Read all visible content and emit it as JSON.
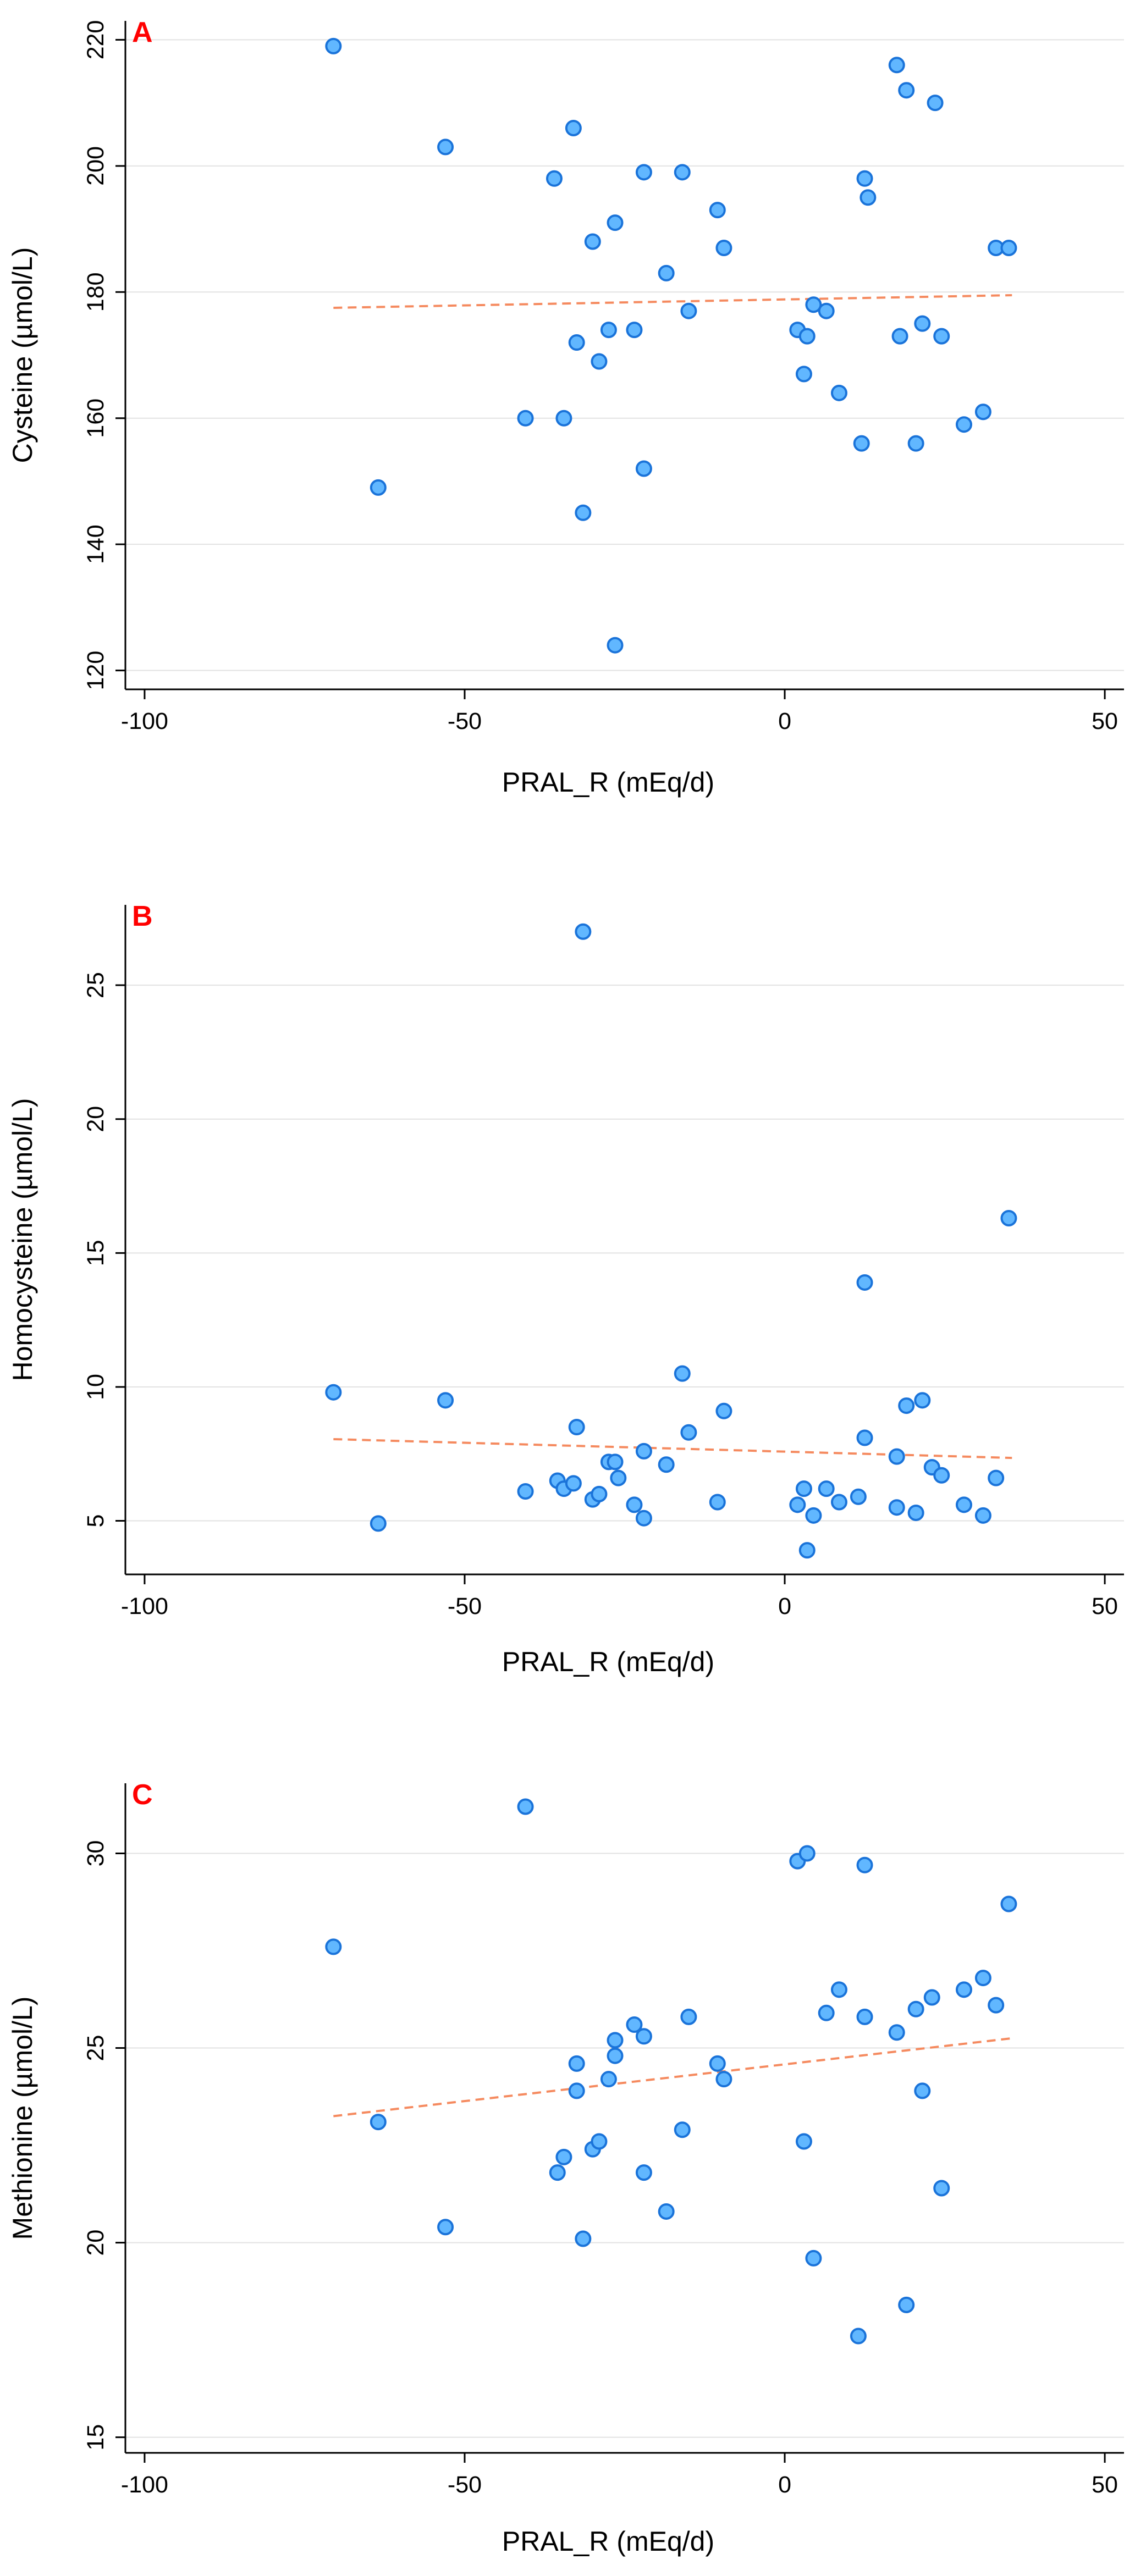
{
  "colors": {
    "point_fill": "#61b7ff",
    "point_stroke": "#1a73d9",
    "fit_line": "#f58a5f",
    "grid": "#e2e2e2",
    "panel_tag": "#ff0000"
  },
  "chart_data": [
    {
      "type": "scatter",
      "panel_label": "A",
      "xlabel": "PRAL_R (mEq/d)",
      "ylabel": "Cysteine (µmol/L)",
      "xlim": [
        -103,
        53
      ],
      "ylim": [
        117,
        223
      ],
      "xticks": [
        -100,
        -50,
        0,
        50
      ],
      "yticks": [
        120,
        140,
        160,
        180,
        200,
        220
      ],
      "fit": {
        "x": [
          -70.5,
          35.5
        ],
        "y": [
          177.5,
          179.5
        ]
      },
      "points": [
        {
          "x": -70.5,
          "y": 219
        },
        {
          "x": -63.5,
          "y": 149
        },
        {
          "x": -53,
          "y": 203
        },
        {
          "x": -40.5,
          "y": 160
        },
        {
          "x": -36,
          "y": 198
        },
        {
          "x": -34.5,
          "y": 160
        },
        {
          "x": -33,
          "y": 206
        },
        {
          "x": -32.5,
          "y": 172
        },
        {
          "x": -31.5,
          "y": 145
        },
        {
          "x": -30,
          "y": 188
        },
        {
          "x": -29,
          "y": 169
        },
        {
          "x": -27.5,
          "y": 174
        },
        {
          "x": -26.5,
          "y": 191
        },
        {
          "x": -26.5,
          "y": 124
        },
        {
          "x": -23.5,
          "y": 174
        },
        {
          "x": -22,
          "y": 199
        },
        {
          "x": -22,
          "y": 152
        },
        {
          "x": -18.5,
          "y": 183
        },
        {
          "x": -16,
          "y": 199
        },
        {
          "x": -15,
          "y": 177
        },
        {
          "x": -10.5,
          "y": 193
        },
        {
          "x": -9.5,
          "y": 187
        },
        {
          "x": 2,
          "y": 174
        },
        {
          "x": 3,
          "y": 167
        },
        {
          "x": 3.5,
          "y": 173
        },
        {
          "x": 4.5,
          "y": 178
        },
        {
          "x": 6.5,
          "y": 177
        },
        {
          "x": 8.5,
          "y": 164
        },
        {
          "x": 12,
          "y": 156
        },
        {
          "x": 12.5,
          "y": 198
        },
        {
          "x": 13,
          "y": 195
        },
        {
          "x": 17.5,
          "y": 216
        },
        {
          "x": 18,
          "y": 173
        },
        {
          "x": 19,
          "y": 212
        },
        {
          "x": 20.5,
          "y": 156
        },
        {
          "x": 21.5,
          "y": 175
        },
        {
          "x": 23.5,
          "y": 210
        },
        {
          "x": 24.5,
          "y": 173
        },
        {
          "x": 28,
          "y": 159
        },
        {
          "x": 31,
          "y": 161
        },
        {
          "x": 33,
          "y": 187
        },
        {
          "x": 35,
          "y": 187
        }
      ]
    },
    {
      "type": "scatter",
      "panel_label": "B",
      "xlabel": "PRAL_R (mEq/d)",
      "ylabel": "Homocysteine (µmol/L)",
      "xlim": [
        -103,
        53
      ],
      "ylim": [
        3,
        28
      ],
      "xticks": [
        -100,
        -50,
        0,
        50
      ],
      "yticks": [
        5,
        10,
        15,
        20,
        25
      ],
      "fit": {
        "x": [
          -70.5,
          35.5
        ],
        "y": [
          8.05,
          7.35
        ]
      },
      "points": [
        {
          "x": -70.5,
          "y": 9.8
        },
        {
          "x": -63.5,
          "y": 4.9
        },
        {
          "x": -53,
          "y": 9.5
        },
        {
          "x": -40.5,
          "y": 6.1
        },
        {
          "x": -35.5,
          "y": 6.5
        },
        {
          "x": -34.5,
          "y": 6.2
        },
        {
          "x": -33,
          "y": 6.4
        },
        {
          "x": -32.5,
          "y": 8.5
        },
        {
          "x": -31.5,
          "y": 27.0
        },
        {
          "x": -30,
          "y": 5.8
        },
        {
          "x": -29,
          "y": 6.0
        },
        {
          "x": -27.5,
          "y": 7.2
        },
        {
          "x": -26.5,
          "y": 7.2
        },
        {
          "x": -26,
          "y": 6.6
        },
        {
          "x": -23.5,
          "y": 5.6
        },
        {
          "x": -22,
          "y": 7.6
        },
        {
          "x": -22,
          "y": 5.1
        },
        {
          "x": -18.5,
          "y": 7.1
        },
        {
          "x": -16,
          "y": 10.5
        },
        {
          "x": -15,
          "y": 8.3
        },
        {
          "x": -10.5,
          "y": 5.7
        },
        {
          "x": -9.5,
          "y": 9.1
        },
        {
          "x": 2,
          "y": 5.6
        },
        {
          "x": 3,
          "y": 6.2
        },
        {
          "x": 3.5,
          "y": 3.9
        },
        {
          "x": 4.5,
          "y": 5.2
        },
        {
          "x": 6.5,
          "y": 6.2
        },
        {
          "x": 8.5,
          "y": 5.7
        },
        {
          "x": 11.5,
          "y": 5.9
        },
        {
          "x": 12.5,
          "y": 13.9
        },
        {
          "x": 12.5,
          "y": 8.1
        },
        {
          "x": 17.5,
          "y": 7.4
        },
        {
          "x": 17.5,
          "y": 5.5
        },
        {
          "x": 19,
          "y": 9.3
        },
        {
          "x": 20.5,
          "y": 5.3
        },
        {
          "x": 21.5,
          "y": 9.5
        },
        {
          "x": 23,
          "y": 7.0
        },
        {
          "x": 24.5,
          "y": 6.7
        },
        {
          "x": 28,
          "y": 5.6
        },
        {
          "x": 31,
          "y": 5.2
        },
        {
          "x": 33,
          "y": 6.6
        },
        {
          "x": 35,
          "y": 16.3
        }
      ]
    },
    {
      "type": "scatter",
      "panel_label": "C",
      "xlabel": "PRAL_R (mEq/d)",
      "ylabel": "Methionine (µmol/L)",
      "xlim": [
        -103,
        53
      ],
      "ylim": [
        14.6,
        31.8
      ],
      "xticks": [
        -100,
        -50,
        0,
        50
      ],
      "yticks": [
        15,
        20,
        25,
        30
      ],
      "fit": {
        "x": [
          -70.5,
          35.5
        ],
        "y": [
          23.25,
          25.25
        ]
      },
      "points": [
        {
          "x": -70.5,
          "y": 27.6
        },
        {
          "x": -63.5,
          "y": 23.1
        },
        {
          "x": -53,
          "y": 20.4
        },
        {
          "x": -40.5,
          "y": 31.2
        },
        {
          "x": -35.5,
          "y": 21.8
        },
        {
          "x": -34.5,
          "y": 22.2
        },
        {
          "x": -32.5,
          "y": 24.6
        },
        {
          "x": -32.5,
          "y": 23.9
        },
        {
          "x": -31.5,
          "y": 20.1
        },
        {
          "x": -30,
          "y": 22.4
        },
        {
          "x": -29,
          "y": 22.6
        },
        {
          "x": -27.5,
          "y": 24.2
        },
        {
          "x": -26.5,
          "y": 25.2
        },
        {
          "x": -26.5,
          "y": 24.8
        },
        {
          "x": -23.5,
          "y": 25.6
        },
        {
          "x": -22,
          "y": 25.3
        },
        {
          "x": -22,
          "y": 21.8
        },
        {
          "x": -18.5,
          "y": 20.8
        },
        {
          "x": -16,
          "y": 22.9
        },
        {
          "x": -15,
          "y": 25.8
        },
        {
          "x": -10.5,
          "y": 24.6
        },
        {
          "x": -9.5,
          "y": 24.2
        },
        {
          "x": 2,
          "y": 29.8
        },
        {
          "x": 3,
          "y": 22.6
        },
        {
          "x": 3.5,
          "y": 30.0
        },
        {
          "x": 4.5,
          "y": 19.6
        },
        {
          "x": 6.5,
          "y": 25.9
        },
        {
          "x": 8.5,
          "y": 26.5
        },
        {
          "x": 11.5,
          "y": 17.6
        },
        {
          "x": 12.5,
          "y": 29.7
        },
        {
          "x": 12.5,
          "y": 25.8
        },
        {
          "x": 17.5,
          "y": 25.4
        },
        {
          "x": 19,
          "y": 18.4
        },
        {
          "x": 20.5,
          "y": 26.0
        },
        {
          "x": 21.5,
          "y": 23.9
        },
        {
          "x": 23,
          "y": 26.3
        },
        {
          "x": 24.5,
          "y": 21.4
        },
        {
          "x": 28,
          "y": 26.5
        },
        {
          "x": 31,
          "y": 26.8
        },
        {
          "x": 33,
          "y": 26.1
        },
        {
          "x": 35,
          "y": 28.7
        }
      ]
    }
  ]
}
